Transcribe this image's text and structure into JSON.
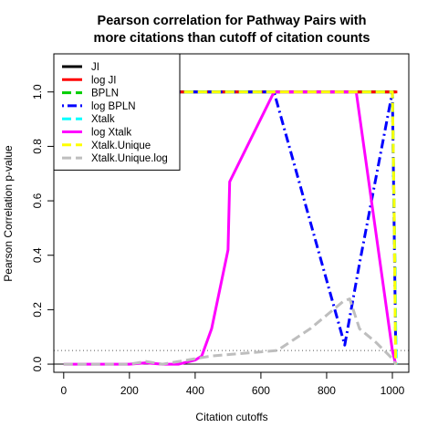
{
  "chart_data": {
    "type": "line",
    "title_lines": [
      "Pearson correlation for Pathway Pairs with",
      "more citations than cutoff of citation counts"
    ],
    "xlabel": "Citation cutoffs",
    "ylabel": "Pearson Correlation p-value",
    "xlim": [
      -30,
      1050
    ],
    "ylim": [
      -0.03,
      1.14
    ],
    "xticks": [
      0,
      200,
      400,
      600,
      800,
      1000
    ],
    "yticks": [
      0.0,
      0.2,
      0.4,
      0.6,
      0.8,
      1.0
    ],
    "xtick_labels": [
      "0",
      "200",
      "400",
      "600",
      "800",
      "1000"
    ],
    "ytick_labels": [
      "0.0",
      "0.2",
      "0.4",
      "0.6",
      "0.8",
      "1.0"
    ],
    "reference_lines": [
      {
        "y": 0.05,
        "style": "dotted",
        "color": "#555555"
      },
      {
        "y": 0.0,
        "style": "solid",
        "color": "#000000"
      }
    ],
    "legend_position": "top-left",
    "series": [
      {
        "name": "JI",
        "color": "#000000",
        "dash": "solid",
        "x": [
          200,
          1000,
          1010
        ],
        "y": [
          1.0,
          1.0,
          1.0
        ]
      },
      {
        "name": "log JI",
        "color": "#ff0000",
        "dash": "solid",
        "x": [
          200,
          1000,
          1015
        ],
        "y": [
          1.0,
          1.0,
          1.0
        ]
      },
      {
        "name": "BPLN",
        "color": "#00cd00",
        "dash": "dashed",
        "x": [
          200,
          990,
          1000,
          1008,
          1010
        ],
        "y": [
          1.0,
          1.0,
          1.0,
          0.35,
          0.08
        ]
      },
      {
        "name": "log BPLN",
        "color": "#0000ff",
        "dash": "dotdash",
        "x": [
          200,
          640,
          855,
          900,
          1000,
          1010
        ],
        "y": [
          1.0,
          1.0,
          0.07,
          0.37,
          1.0,
          0.08
        ]
      },
      {
        "name": "Xtalk",
        "color": "#00ffff",
        "dash": "dashed",
        "x": [
          200,
          990,
          1000,
          1008,
          1012
        ],
        "y": [
          1.0,
          1.0,
          1.0,
          0.3,
          0.0
        ]
      },
      {
        "name": "log Xtalk",
        "color": "#ff00ff",
        "dash": "solid",
        "x": [
          0,
          50,
          100,
          150,
          200,
          250,
          300,
          350,
          400,
          420,
          450,
          500,
          505,
          640,
          890,
          1000,
          1010
        ],
        "y": [
          0.0,
          0.0,
          0.0,
          0.0,
          0.0,
          0.005,
          0.0,
          0.0,
          0.015,
          0.03,
          0.13,
          0.42,
          0.67,
          1.0,
          1.0,
          0.05,
          0.0
        ]
      },
      {
        "name": "Xtalk.Unique",
        "color": "#ffff00",
        "dash": "dashed",
        "x": [
          200,
          990,
          1000,
          1005,
          1010
        ],
        "y": [
          1.0,
          1.0,
          1.0,
          0.6,
          0.0
        ]
      },
      {
        "name": "Xtalk.Unique.log",
        "color": "#bebebe",
        "dash": "dashed",
        "x": [
          0,
          100,
          200,
          250,
          300,
          350,
          400,
          450,
          500,
          550,
          600,
          650,
          700,
          750,
          800,
          850,
          870,
          900,
          950,
          1000,
          1010
        ],
        "y": [
          0.0,
          0.0,
          0.0,
          0.01,
          0.0,
          0.01,
          0.02,
          0.03,
          0.035,
          0.04,
          0.045,
          0.05,
          0.09,
          0.13,
          0.18,
          0.23,
          0.24,
          0.13,
          0.08,
          0.02,
          0.0
        ]
      }
    ]
  }
}
